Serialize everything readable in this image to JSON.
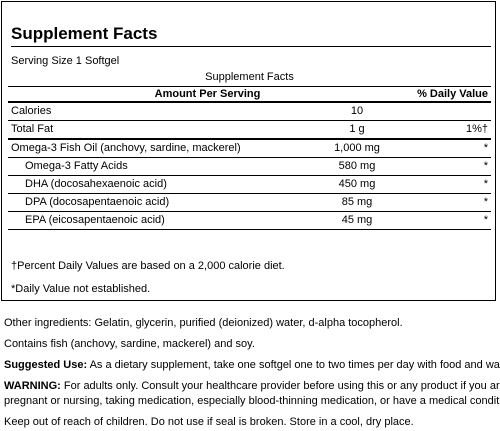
{
  "panel": {
    "title": "Supplement Facts",
    "serving_size": "Serving Size 1 Softgel",
    "table_caption": "Supplement Facts",
    "header": {
      "amount": "Amount Per Serving",
      "dv": "% Daily Value"
    },
    "rows": [
      {
        "name": "Calories",
        "amount": "10",
        "dv": "",
        "indent": false
      },
      {
        "name": "Total Fat",
        "amount": "1 g",
        "dv": "1%†",
        "indent": false
      },
      {
        "name": "Omega-3 Fish Oil (anchovy, sardine, mackerel)",
        "amount": "1,000 mg",
        "dv": "*",
        "indent": false
      },
      {
        "name": "Omega-3 Fatty Acids",
        "amount": "580 mg",
        "dv": "*",
        "indent": true
      },
      {
        "name": "DHA (docosahexaenoic acid)",
        "amount": "450 mg",
        "dv": "*",
        "indent": true
      },
      {
        "name": "DPA (docosapentaenoic acid)",
        "amount": "85 mg",
        "dv": "*",
        "indent": true
      },
      {
        "name": "EPA (eicosapentaenoic acid)",
        "amount": "45 mg",
        "dv": "*",
        "indent": true
      }
    ],
    "footnote_percent": "†Percent Daily Values are based on a 2,000 calorie diet.",
    "footnote_dv": "*Daily Value not established."
  },
  "info": {
    "other_ingredients": "Other ingredients: Gelatin, glycerin, purified (deionized) water, d-alpha tocopherol.",
    "contains": "Contains fish (anchovy, sardine, mackerel) and soy.",
    "suggested_use_label": "Suggested Use:",
    "suggested_use_text": " As a dietary supplement, take one softgel one to two times per day with food and water.",
    "warning_label": "WARNING:",
    "warning_line1": " For adults only. Consult your healthcare provider before using this or any product if you are",
    "warning_line2": "pregnant or nursing, taking medication, especially blood-thinning medication, or have a medical condition.",
    "keep_out": "Keep out of reach of children. Do not use if seal is broken. Store in a cool, dry place."
  }
}
